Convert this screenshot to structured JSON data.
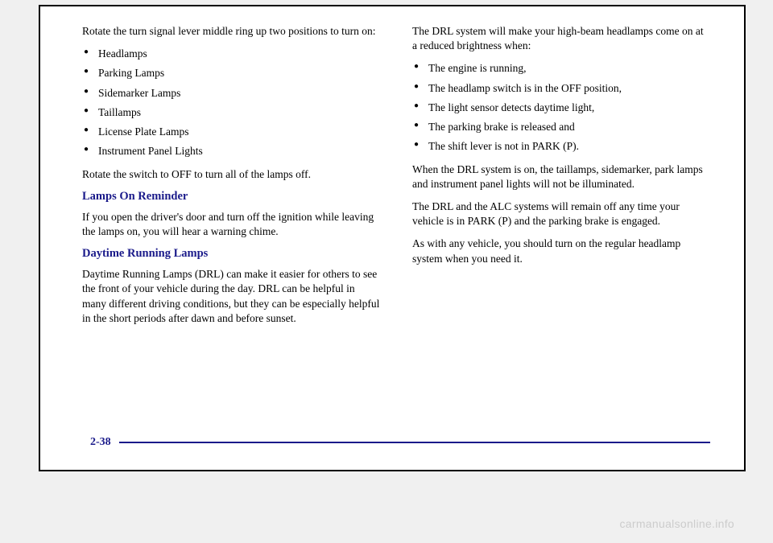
{
  "left": {
    "intro": "Rotate the turn signal lever middle ring up two positions to turn on:",
    "items": [
      "Headlamps",
      "Parking Lamps",
      "Sidemarker Lamps",
      "Taillamps",
      "License Plate Lamps",
      "Instrument Panel Lights"
    ],
    "afterList": "Rotate the switch to OFF to turn all of the lamps off.",
    "h1": "Lamps On Reminder",
    "p1": "If you open the driver's door and turn off the ignition while leaving the lamps on, you will hear a warning chime.",
    "h2": "Daytime Running Lamps",
    "p2": "Daytime Running Lamps (DRL) can make it easier for others to see the front of your vehicle during the day. DRL can be helpful in many different driving conditions, but they can be especially helpful in the short periods after dawn and before sunset."
  },
  "right": {
    "intro": "The DRL system will make your high-beam headlamps come on at a reduced brightness when:",
    "items": [
      "The engine is running,",
      "The headlamp switch is in the OFF position,",
      "The light sensor detects daytime light,",
      "The parking brake is released and",
      "The shift lever is not in PARK (P)."
    ],
    "p1": "When the DRL system is on, the taillamps, sidemarker, park lamps and instrument panel lights will not be illuminated.",
    "p2": "The DRL and the ALC systems will remain off any time your vehicle is in PARK (P) and the parking brake is engaged.",
    "p3": "As with any vehicle, you should turn on the regular headlamp system when you need it."
  },
  "pageNumber": "2-38",
  "watermark": "carmanualsonline.info",
  "colors": {
    "heading": "#1a1a8a",
    "text": "#000000",
    "border": "#000000",
    "watermark": "#cccccc"
  }
}
